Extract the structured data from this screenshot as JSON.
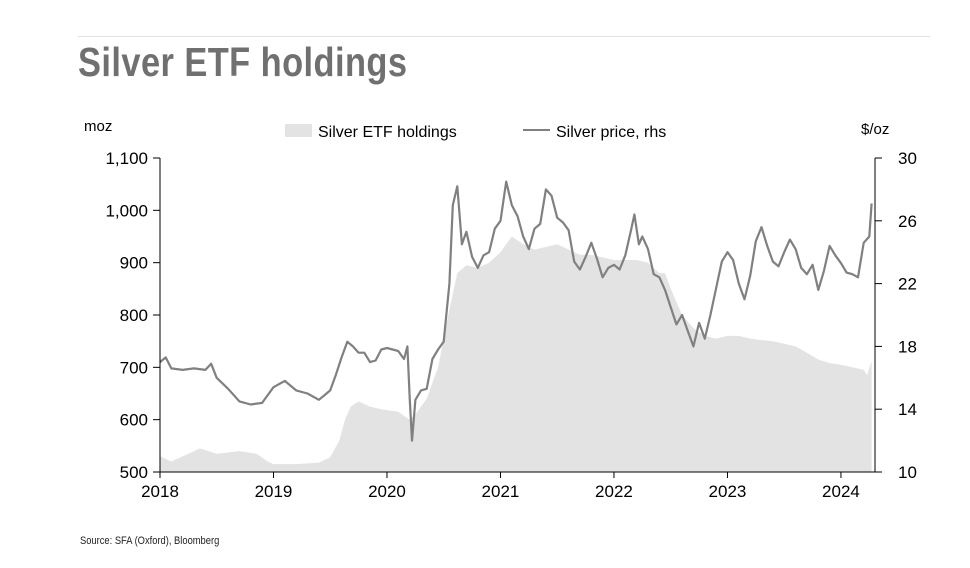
{
  "title": "Silver ETF holdings",
  "source": "Source: SFA (Oxford), Bloomberg",
  "colors": {
    "area": "#e3e3e3",
    "line": "#808080",
    "axis": "#000000",
    "title": "#707070"
  },
  "chart_data": {
    "type": "area",
    "title": "Silver ETF holdings",
    "grid": false,
    "legend_position": "top-center",
    "left_unit": "moz",
    "right_unit": "$/oz",
    "x_ticks": [
      "2018",
      "2019",
      "2020",
      "2021",
      "2022",
      "2023",
      "2024"
    ],
    "y_left": {
      "range": [
        500,
        1100
      ],
      "ticks": [
        "500",
        "600",
        "700",
        "800",
        "900",
        "1,000",
        "1,100"
      ]
    },
    "y_right": {
      "range": [
        10,
        30
      ],
      "ticks": [
        "10",
        "14",
        "18",
        "22",
        "26",
        "30"
      ]
    },
    "series": [
      {
        "name": "Silver ETF holdings",
        "type": "area",
        "axis": "left",
        "points": [
          [
            2018.0,
            530
          ],
          [
            2018.1,
            520
          ],
          [
            2018.25,
            535
          ],
          [
            2018.35,
            545
          ],
          [
            2018.5,
            535
          ],
          [
            2018.7,
            540
          ],
          [
            2018.85,
            535
          ],
          [
            2018.95,
            520
          ],
          [
            2019.0,
            515
          ],
          [
            2019.2,
            515
          ],
          [
            2019.4,
            518
          ],
          [
            2019.5,
            528
          ],
          [
            2019.58,
            560
          ],
          [
            2019.63,
            600
          ],
          [
            2019.68,
            625
          ],
          [
            2019.75,
            635
          ],
          [
            2019.85,
            625
          ],
          [
            2019.95,
            620
          ],
          [
            2020.1,
            615
          ],
          [
            2020.2,
            600
          ],
          [
            2020.25,
            610
          ],
          [
            2020.35,
            640
          ],
          [
            2020.45,
            700
          ],
          [
            2020.55,
            810
          ],
          [
            2020.62,
            880
          ],
          [
            2020.7,
            895
          ],
          [
            2020.8,
            890
          ],
          [
            2020.9,
            900
          ],
          [
            2021.0,
            920
          ],
          [
            2021.1,
            950
          ],
          [
            2021.2,
            935
          ],
          [
            2021.3,
            925
          ],
          [
            2021.4,
            930
          ],
          [
            2021.5,
            935
          ],
          [
            2021.6,
            925
          ],
          [
            2021.7,
            915
          ],
          [
            2021.8,
            915
          ],
          [
            2021.9,
            910
          ],
          [
            2022.0,
            905
          ],
          [
            2022.1,
            905
          ],
          [
            2022.2,
            905
          ],
          [
            2022.3,
            900
          ],
          [
            2022.4,
            880
          ],
          [
            2022.45,
            880
          ],
          [
            2022.5,
            850
          ],
          [
            2022.6,
            800
          ],
          [
            2022.7,
            775
          ],
          [
            2022.8,
            760
          ],
          [
            2022.9,
            755
          ],
          [
            2023.0,
            760
          ],
          [
            2023.1,
            760
          ],
          [
            2023.2,
            755
          ],
          [
            2023.3,
            752
          ],
          [
            2023.4,
            750
          ],
          [
            2023.5,
            745
          ],
          [
            2023.6,
            740
          ],
          [
            2023.7,
            728
          ],
          [
            2023.8,
            715
          ],
          [
            2023.9,
            708
          ],
          [
            2024.0,
            705
          ],
          [
            2024.1,
            700
          ],
          [
            2024.2,
            695
          ],
          [
            2024.23,
            685
          ],
          [
            2024.27,
            712
          ]
        ]
      },
      {
        "name": "Silver price, rhs",
        "type": "line",
        "axis": "right",
        "points": [
          [
            2018.0,
            17.0
          ],
          [
            2018.05,
            17.3
          ],
          [
            2018.1,
            16.6
          ],
          [
            2018.2,
            16.5
          ],
          [
            2018.3,
            16.6
          ],
          [
            2018.4,
            16.5
          ],
          [
            2018.45,
            16.9
          ],
          [
            2018.5,
            16.0
          ],
          [
            2018.6,
            15.3
          ],
          [
            2018.7,
            14.5
          ],
          [
            2018.8,
            14.3
          ],
          [
            2018.9,
            14.4
          ],
          [
            2019.0,
            15.4
          ],
          [
            2019.1,
            15.8
          ],
          [
            2019.2,
            15.2
          ],
          [
            2019.3,
            15.0
          ],
          [
            2019.4,
            14.6
          ],
          [
            2019.45,
            14.9
          ],
          [
            2019.5,
            15.2
          ],
          [
            2019.55,
            16.2
          ],
          [
            2019.6,
            17.3
          ],
          [
            2019.65,
            18.3
          ],
          [
            2019.7,
            18.0
          ],
          [
            2019.75,
            17.6
          ],
          [
            2019.8,
            17.6
          ],
          [
            2019.85,
            17.0
          ],
          [
            2019.9,
            17.1
          ],
          [
            2019.95,
            17.8
          ],
          [
            2020.0,
            17.9
          ],
          [
            2020.05,
            17.8
          ],
          [
            2020.1,
            17.7
          ],
          [
            2020.15,
            17.2
          ],
          [
            2020.18,
            18.0
          ],
          [
            2020.2,
            14.7
          ],
          [
            2020.22,
            12.0
          ],
          [
            2020.25,
            14.6
          ],
          [
            2020.3,
            15.2
          ],
          [
            2020.35,
            15.3
          ],
          [
            2020.4,
            17.2
          ],
          [
            2020.45,
            17.8
          ],
          [
            2020.5,
            18.3
          ],
          [
            2020.55,
            22.0
          ],
          [
            2020.58,
            27.0
          ],
          [
            2020.62,
            28.2
          ],
          [
            2020.66,
            24.5
          ],
          [
            2020.7,
            25.3
          ],
          [
            2020.75,
            23.7
          ],
          [
            2020.8,
            23.0
          ],
          [
            2020.85,
            23.8
          ],
          [
            2020.9,
            24.0
          ],
          [
            2020.95,
            25.5
          ],
          [
            2021.0,
            26.0
          ],
          [
            2021.05,
            28.5
          ],
          [
            2021.1,
            27.0
          ],
          [
            2021.15,
            26.3
          ],
          [
            2021.2,
            25.0
          ],
          [
            2021.25,
            24.2
          ],
          [
            2021.3,
            25.5
          ],
          [
            2021.35,
            25.8
          ],
          [
            2021.4,
            28.0
          ],
          [
            2021.45,
            27.6
          ],
          [
            2021.5,
            26.2
          ],
          [
            2021.55,
            25.9
          ],
          [
            2021.6,
            25.4
          ],
          [
            2021.65,
            23.4
          ],
          [
            2021.7,
            22.9
          ],
          [
            2021.75,
            23.7
          ],
          [
            2021.8,
            24.6
          ],
          [
            2021.85,
            23.6
          ],
          [
            2021.9,
            22.4
          ],
          [
            2021.95,
            23.0
          ],
          [
            2022.0,
            23.2
          ],
          [
            2022.05,
            22.9
          ],
          [
            2022.1,
            23.8
          ],
          [
            2022.15,
            25.4
          ],
          [
            2022.18,
            26.4
          ],
          [
            2022.22,
            24.5
          ],
          [
            2022.25,
            25.0
          ],
          [
            2022.3,
            24.2
          ],
          [
            2022.35,
            22.6
          ],
          [
            2022.4,
            22.4
          ],
          [
            2022.45,
            21.6
          ],
          [
            2022.5,
            20.5
          ],
          [
            2022.55,
            19.4
          ],
          [
            2022.6,
            20.0
          ],
          [
            2022.65,
            19.0
          ],
          [
            2022.7,
            18.0
          ],
          [
            2022.75,
            19.5
          ],
          [
            2022.8,
            18.5
          ],
          [
            2022.85,
            20.0
          ],
          [
            2022.9,
            21.7
          ],
          [
            2022.95,
            23.4
          ],
          [
            2023.0,
            24.0
          ],
          [
            2023.05,
            23.5
          ],
          [
            2023.1,
            22.0
          ],
          [
            2023.15,
            21.0
          ],
          [
            2023.2,
            22.5
          ],
          [
            2023.25,
            24.7
          ],
          [
            2023.3,
            25.6
          ],
          [
            2023.35,
            24.4
          ],
          [
            2023.4,
            23.4
          ],
          [
            2023.45,
            23.1
          ],
          [
            2023.5,
            24.0
          ],
          [
            2023.55,
            24.8
          ],
          [
            2023.6,
            24.2
          ],
          [
            2023.65,
            23.0
          ],
          [
            2023.7,
            22.6
          ],
          [
            2023.75,
            23.2
          ],
          [
            2023.8,
            21.6
          ],
          [
            2023.85,
            22.8
          ],
          [
            2023.9,
            24.4
          ],
          [
            2023.95,
            23.8
          ],
          [
            2024.0,
            23.3
          ],
          [
            2024.05,
            22.7
          ],
          [
            2024.1,
            22.6
          ],
          [
            2024.15,
            22.4
          ],
          [
            2024.2,
            24.6
          ],
          [
            2024.25,
            25.0
          ],
          [
            2024.27,
            27.1
          ]
        ]
      }
    ]
  }
}
